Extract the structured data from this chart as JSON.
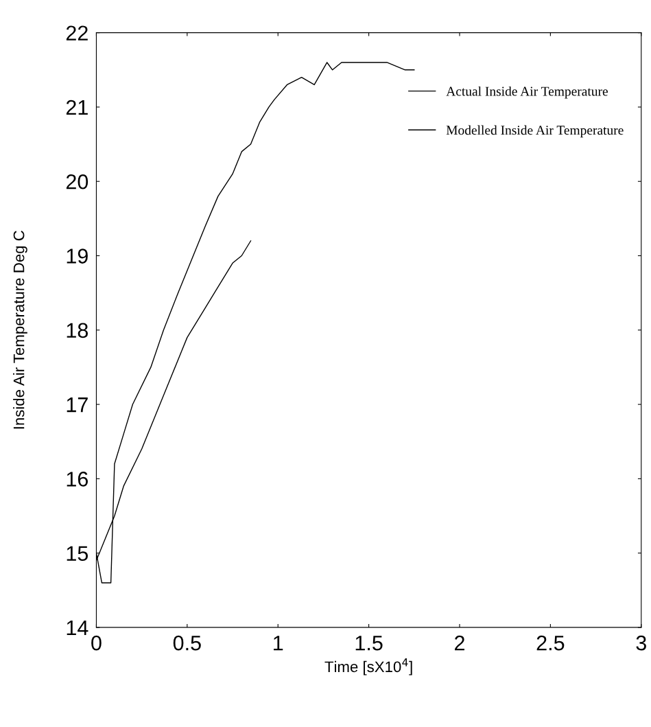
{
  "chart_data": {
    "type": "line",
    "xlabel": "Time [sX10$^{4}$]",
    "ylabel": "Inside Air Temperature Deg C",
    "xlim": [
      0,
      3
    ],
    "ylim": [
      14,
      22
    ],
    "xticks": [
      0,
      0.5,
      1,
      1.5,
      2,
      2.5,
      3
    ],
    "yticks": [
      14,
      15,
      16,
      17,
      18,
      19,
      20,
      21,
      22
    ],
    "grid": false,
    "legend": "top right",
    "marker": "none",
    "line_style": "solid",
    "series": [
      {
        "name": "Actual Inside Air Temperature",
        "color": "#000000",
        "x": [
          0,
          0.03,
          0.08,
          0.1,
          0.15,
          0.2,
          0.3,
          0.37,
          0.45,
          0.5,
          0.6,
          0.67,
          0.75,
          0.8,
          0.85,
          0.9,
          0.95,
          0.98,
          1.05,
          1.13,
          1.2,
          1.27,
          1.3,
          1.35,
          1.45,
          1.6,
          1.7,
          1.75
        ],
        "values": [
          15.0,
          14.6,
          14.6,
          16.2,
          16.6,
          17.0,
          17.5,
          18.0,
          18.5,
          18.8,
          19.4,
          19.8,
          20.1,
          20.4,
          20.5,
          20.8,
          21.0,
          21.1,
          21.3,
          21.4,
          21.3,
          21.6,
          21.5,
          21.6,
          21.6,
          21.6,
          21.5,
          21.5
        ]
      },
      {
        "name": "Modelled Inside Air Temperature",
        "color": "#000000",
        "x": [
          0,
          0.05,
          0.1,
          0.15,
          0.25,
          0.35,
          0.4,
          0.5,
          0.6,
          0.65,
          0.75,
          0.8,
          0.85
        ],
        "values": [
          14.9,
          15.2,
          15.5,
          15.9,
          16.4,
          17.0,
          17.3,
          17.9,
          18.3,
          18.5,
          18.9,
          19.0,
          19.2
        ]
      }
    ]
  }
}
